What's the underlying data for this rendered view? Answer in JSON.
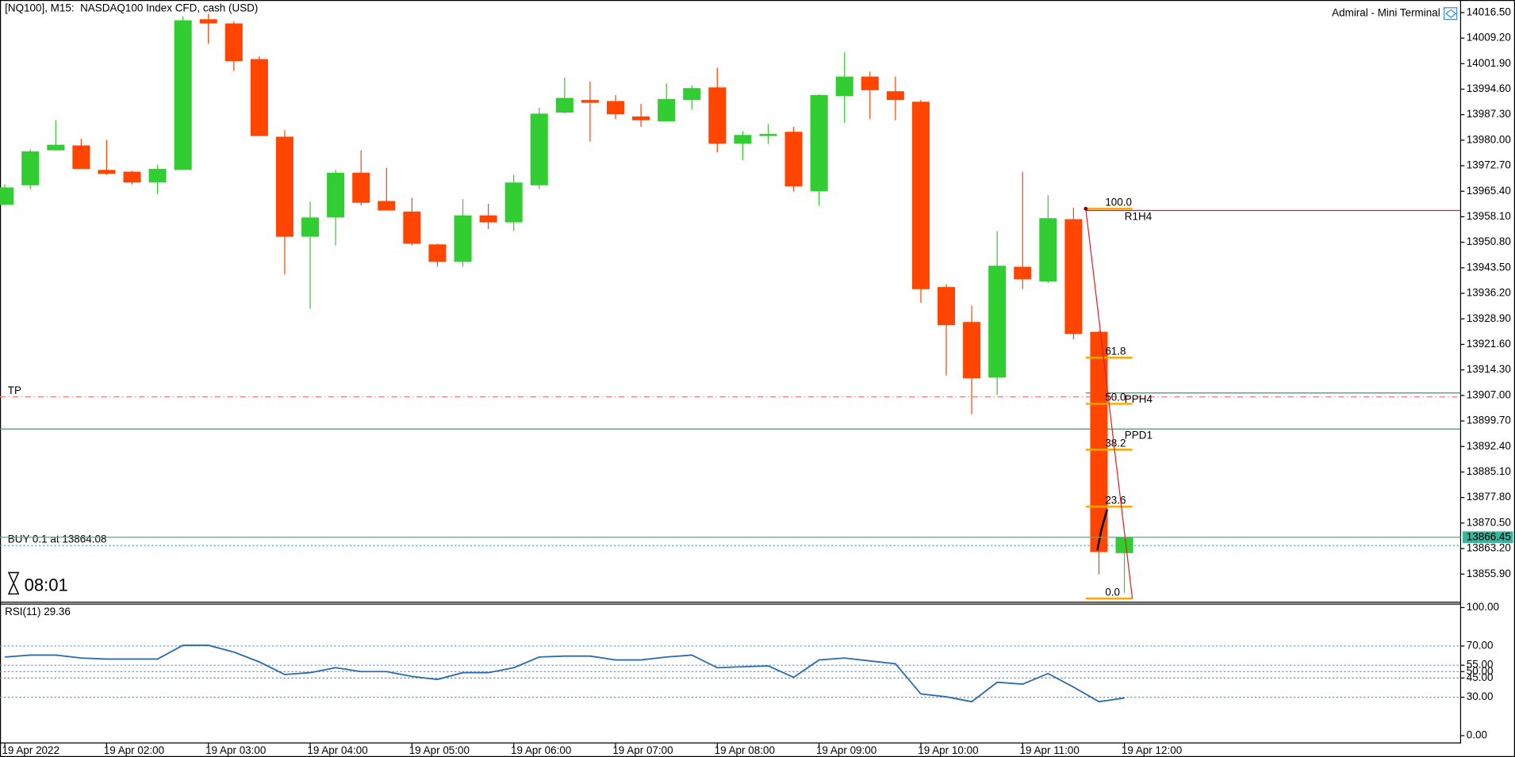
{
  "chart_data": [
    {
      "type": "candlestick",
      "title": "[NQ100], M15:  NASDAQ100 Index CFD, cash (USD)",
      "terminal": "Admiral - Mini Terminal",
      "timer": "08:01",
      "categories": [
        "19 Apr 2022",
        null,
        null,
        null,
        "19 Apr 02:00",
        null,
        null,
        null,
        "19 Apr 03:00",
        null,
        null,
        null,
        "19 Apr 04:00",
        null,
        null,
        null,
        "19 Apr 05:00",
        null,
        null,
        null,
        "19 Apr 06:00",
        null,
        null,
        null,
        "19 Apr 07:00",
        null,
        null,
        null,
        "19 Apr 08:00",
        null,
        null,
        null,
        "19 Apr 09:00",
        null,
        null,
        null,
        "19 Apr 10:00",
        null,
        null,
        null,
        "19 Apr 11:00",
        null,
        null,
        null,
        "19 Apr 12:00"
      ],
      "open": [
        13961.5,
        13967.1,
        13977.1,
        13978.5,
        13971.5,
        13971.0,
        13967.9,
        13971.5,
        14014.6,
        14013.4,
        14003.2,
        13981.0,
        13952.4,
        13957.9,
        13970.7,
        13962.6,
        13959.6,
        13950.2,
        13945.2,
        13958.5,
        13956.5,
        13967.1,
        13987.9,
        13991.5,
        13991.2,
        13986.8,
        13985.4,
        13991.5,
        13995.1,
        13979.0,
        13981.2,
        13982.4,
        13965.4,
        13992.6,
        13998.2,
        13994.0,
        13991.0,
        13938.0,
        13928.0,
        13912.1,
        13943.8,
        13939.6,
        13957.4,
        13925.2,
        13861.9
      ],
      "high": [
        13967.4,
        13977.4,
        13985.7,
        13980.4,
        13980.1,
        13971.3,
        13972.9,
        14015.4,
        14016.2,
        14014.0,
        14004.0,
        13982.9,
        13962.4,
        13971.5,
        13977.1,
        13972.1,
        13963.5,
        13950.4,
        13963.2,
        13961.8,
        13970.1,
        13989.3,
        13997.9,
        13996.8,
        13992.9,
        13990.4,
        13996.2,
        13995.7,
        14000.7,
        13982.6,
        13984.6,
        13983.8,
        13993.2,
        14005.1,
        13999.6,
        13998.2,
        13991.5,
        13938.8,
        13932.7,
        13954.0,
        13971.0,
        13964.3,
        13960.7,
        13925.5,
        13866.45
      ],
      "low": [
        13961.5,
        13966.0,
        13977.1,
        13971.8,
        13970.1,
        13967.4,
        13964.6,
        13971.5,
        14007.6,
        13999.8,
        13981.2,
        13941.6,
        13931.8,
        13949.9,
        13961.3,
        13959.9,
        13949.9,
        13943.8,
        13943.8,
        13954.6,
        13954.0,
        13966.0,
        13987.6,
        13979.6,
        13986.0,
        13983.8,
        13985.4,
        13988.7,
        13976.5,
        13974.3,
        13979.0,
        13965.4,
        13961.3,
        13984.9,
        13986.0,
        13985.7,
        13933.5,
        13912.7,
        13901.6,
        13907.1,
        13937.4,
        13939.1,
        13923.0,
        13855.8,
        13850.5
      ],
      "close": [
        13966.5,
        13976.8,
        13978.7,
        13971.8,
        13970.4,
        13967.9,
        13971.8,
        14014.3,
        14013.4,
        14002.6,
        13981.2,
        13952.4,
        13957.9,
        13970.7,
        13962.1,
        13959.9,
        13950.4,
        13945.2,
        13958.5,
        13956.5,
        13967.9,
        13987.6,
        13992.1,
        13990.7,
        13987.4,
        13985.7,
        13991.8,
        13994.9,
        13979.0,
        13981.5,
        13981.8,
        13966.8,
        13992.9,
        13998.2,
        13994.3,
        13991.5,
        13937.4,
        13927.1,
        13911.9,
        13944.1,
        13940.2,
        13957.7,
        13924.6,
        13862.2,
        13866.45
      ],
      "up_color": "#32cd32",
      "down_color": "#ff4500",
      "ylim": [
        13848.0,
        14020.1
      ],
      "yticks": [
        {
          "value": 14016.5,
          "label": "14016.50"
        },
        {
          "value": 14009.2,
          "label": "14009.20"
        },
        {
          "value": 14001.9,
          "label": "14001.90"
        },
        {
          "value": 13994.6,
          "label": "13994.60"
        },
        {
          "value": 13987.3,
          "label": "13987.30"
        },
        {
          "value": 13980.0,
          "label": "13980.00"
        },
        {
          "value": 13972.7,
          "label": "13972.70"
        },
        {
          "value": 13965.4,
          "label": "13965.40"
        },
        {
          "value": 13958.1,
          "label": "13958.10"
        },
        {
          "value": 13950.8,
          "label": "13950.80"
        },
        {
          "value": 13943.5,
          "label": "13943.50"
        },
        {
          "value": 13936.2,
          "label": "13936.20"
        },
        {
          "value": 13928.9,
          "label": "13928.90"
        },
        {
          "value": 13921.6,
          "label": "13921.60"
        },
        {
          "value": 13914.3,
          "label": "13914.30"
        },
        {
          "value": 13907.0,
          "label": "13907.00"
        },
        {
          "value": 13899.7,
          "label": "13899.70"
        },
        {
          "value": 13892.4,
          "label": "13892.40"
        },
        {
          "value": 13885.1,
          "label": "13885.10"
        },
        {
          "value": 13877.8,
          "label": "13877.80"
        },
        {
          "value": 13870.5,
          "label": "13870.50"
        },
        {
          "value": 13863.2,
          "label": "13863.20"
        },
        {
          "value": 13855.9,
          "label": "13855.90"
        }
      ],
      "bid": 13866.45,
      "bid_color": "#3cb39c",
      "order": {
        "label": "BUY 0.1 at 13864.08",
        "value": 13864.08
      },
      "lines": [
        {
          "label": "TP",
          "value": 13906.6,
          "color": "#f08080",
          "dashed": true,
          "partial": false,
          "label_side": "left"
        },
        {
          "label": "PPH4",
          "value": 13907.7,
          "color": "#2e9e6e",
          "dashed": false,
          "partial": true,
          "label_side": "right"
        },
        {
          "label": "PPD1",
          "value": 13897.4,
          "color": "#2e9e6e",
          "dashed": false,
          "partial": false,
          "label_side": "right"
        },
        {
          "label": "R1H4",
          "value": 13959.9,
          "color": "#dc143c",
          "dashed": false,
          "partial": true,
          "label_side": "right"
        }
      ],
      "fibo": {
        "color": "#ffa500",
        "trend_color": "#e02020",
        "levels": [
          {
            "label": "100.0",
            "value": 13960.4
          },
          {
            "label": "61.8",
            "value": 13917.8
          },
          {
            "label": "50.0",
            "value": 13904.6
          },
          {
            "label": "38.2",
            "value": 13891.5
          },
          {
            "label": "23.6",
            "value": 13875.2
          },
          {
            "label": "0.0",
            "value": 13848.9
          }
        ]
      }
    },
    {
      "type": "line",
      "title": "RSI(11) 29.36",
      "color": "#2b6cb0",
      "values": [
        61.4,
        62.9,
        62.9,
        60.6,
        59.8,
        59.8,
        59.8,
        70.5,
        70.5,
        65.2,
        57.6,
        47.7,
        49.2,
        53.0,
        50.0,
        50.0,
        46.2,
        43.9,
        49.2,
        49.2,
        53.0,
        61.4,
        62.1,
        62.1,
        59.1,
        59.1,
        61.4,
        62.9,
        53.0,
        53.8,
        54.5,
        45.5,
        59.1,
        60.6,
        58.3,
        56.1,
        32.6,
        30.3,
        26.5,
        41.7,
        40.2,
        48.5,
        37.9,
        26.5,
        29.36
      ],
      "ylim": [
        0,
        100
      ],
      "yticks": [
        {
          "value": 100,
          "label": "100.00"
        },
        {
          "value": 70,
          "label": "70.00"
        },
        {
          "value": 55,
          "label": "55.00"
        },
        {
          "value": 50,
          "label": "50.00"
        },
        {
          "value": 45,
          "label": "45.00"
        },
        {
          "value": 30,
          "label": "30.00"
        },
        {
          "value": 0,
          "label": "0.00"
        }
      ],
      "levels": [
        70,
        55,
        50,
        45,
        30
      ]
    }
  ]
}
